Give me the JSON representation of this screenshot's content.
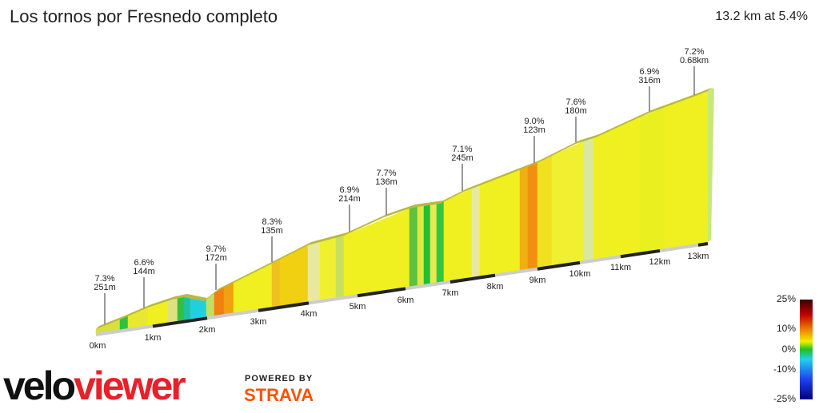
{
  "header": {
    "title": "Los tornos por Fresnedo completo",
    "summary": "13.2 km at 5.4%"
  },
  "annotations": [
    {
      "gradient": "7.3%",
      "length": "251m"
    },
    {
      "gradient": "6.6%",
      "length": "144m"
    },
    {
      "gradient": "9.7%",
      "length": "172m"
    },
    {
      "gradient": "8.3%",
      "length": "135m"
    },
    {
      "gradient": "6.9%",
      "length": "214m"
    },
    {
      "gradient": "7.7%",
      "length": "136m"
    },
    {
      "gradient": "7.1%",
      "length": "245m"
    },
    {
      "gradient": "9.0%",
      "length": "123m"
    },
    {
      "gradient": "7.6%",
      "length": "180m"
    },
    {
      "gradient": "6.9%",
      "length": "316m"
    },
    {
      "gradient": "7.2%",
      "length": "0.68km"
    }
  ],
  "distance_labels": [
    "0km",
    "1km",
    "2km",
    "3km",
    "4km",
    "5km",
    "6km",
    "7km",
    "8km",
    "9km",
    "10km",
    "11km",
    "12km",
    "13km"
  ],
  "gradient_scale": {
    "labels": [
      "25%",
      "10%",
      "0%",
      "-10%",
      "-25%"
    ]
  },
  "branding": {
    "logo": [
      "velo",
      "viewer"
    ],
    "powered_by": "POWERED BY",
    "partner": "STRAVA"
  }
}
